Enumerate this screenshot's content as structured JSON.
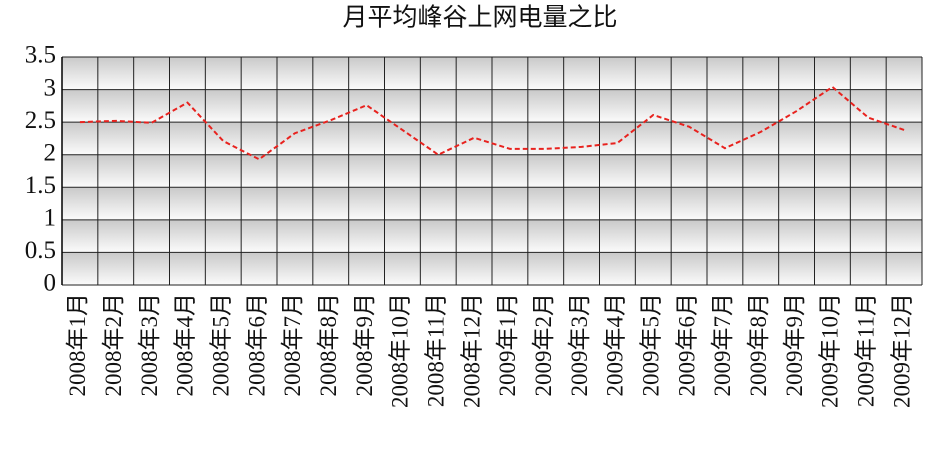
{
  "chart_data": {
    "type": "line",
    "title": "月平均峰谷上网电量之比",
    "categories": [
      "2008年1月",
      "2008年2月",
      "2008年3月",
      "2008年4月",
      "2008年5月",
      "2008年6月",
      "2008年7月",
      "2008年8月",
      "2008年9月",
      "2008年10月",
      "2008年11月",
      "2008年12月",
      "2009年1月",
      "2009年2月",
      "2009年3月",
      "2009年4月",
      "2009年5月",
      "2009年6月",
      "2009年7月",
      "2009年8月",
      "2009年9月",
      "2009年10月",
      "2009年11月",
      "2009年12月"
    ],
    "values": [
      2.5,
      2.52,
      2.49,
      2.8,
      2.21,
      1.93,
      2.33,
      2.53,
      2.76,
      2.38,
      2.0,
      2.26,
      2.09,
      2.09,
      2.12,
      2.18,
      2.61,
      2.43,
      2.1,
      2.35,
      2.67,
      3.04,
      2.57,
      2.38
    ],
    "color": "#e8221e",
    "ylim": [
      0,
      3.5
    ],
    "yticks": [
      0,
      0.5,
      1,
      1.5,
      2,
      2.5,
      3,
      3.5
    ],
    "grid": true
  }
}
